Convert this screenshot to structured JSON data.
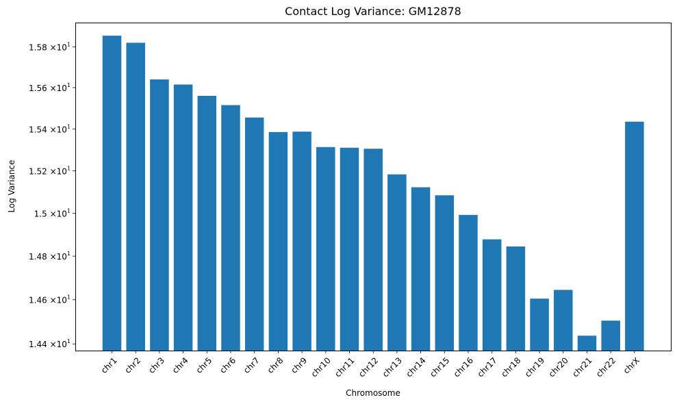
{
  "chart_data": {
    "type": "bar",
    "title": "Contact Log Variance: GM12878",
    "xlabel": "Chromosome",
    "ylabel": "Log Variance",
    "yscale": "log",
    "ylim": [
      14.37,
      15.92
    ],
    "grid": false,
    "legend": "none",
    "bar_color": "#1f77b4",
    "categories": [
      "chr1",
      "chr2",
      "chr3",
      "chr4",
      "chr5",
      "chr6",
      "chr7",
      "chr8",
      "chr9",
      "chr10",
      "chr11",
      "chr12",
      "chr13",
      "chr14",
      "chr15",
      "chr16",
      "chr17",
      "chr18",
      "chr19",
      "chr20",
      "chr21",
      "chr22",
      "chrX"
    ],
    "values": [
      15.855,
      15.82,
      15.64,
      15.615,
      15.56,
      15.515,
      15.455,
      15.385,
      15.387,
      15.313,
      15.31,
      15.305,
      15.183,
      15.122,
      15.084,
      14.992,
      14.878,
      14.845,
      14.605,
      14.645,
      14.437,
      14.505,
      15.435
    ],
    "yticks": [
      {
        "value": 14.4,
        "mantissa": "1.44",
        "base": "×10",
        "exp": "1"
      },
      {
        "value": 14.6,
        "mantissa": "1.46",
        "base": "×10",
        "exp": "1"
      },
      {
        "value": 14.8,
        "mantissa": "1.48",
        "base": "×10",
        "exp": "1"
      },
      {
        "value": 15.0,
        "mantissa": "1.5",
        "base": "×10",
        "exp": "1"
      },
      {
        "value": 15.2,
        "mantissa": "1.52",
        "base": "×10",
        "exp": "1"
      },
      {
        "value": 15.4,
        "mantissa": "1.54",
        "base": "×10",
        "exp": "1"
      },
      {
        "value": 15.6,
        "mantissa": "1.56",
        "base": "×10",
        "exp": "1"
      },
      {
        "value": 15.8,
        "mantissa": "1.58",
        "base": "×10",
        "exp": "1"
      }
    ]
  }
}
